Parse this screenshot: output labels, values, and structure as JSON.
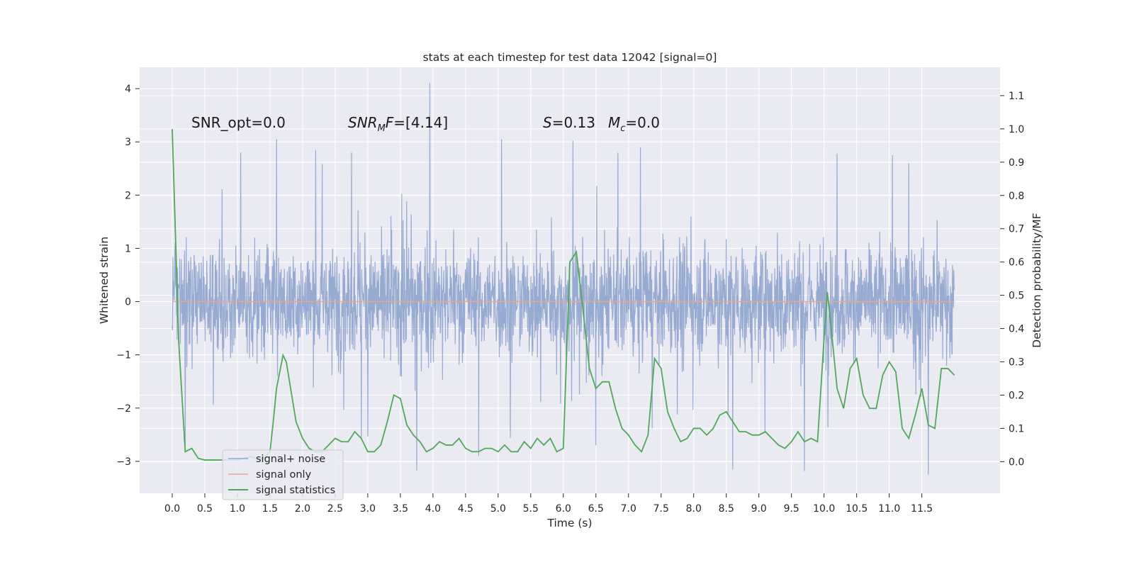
{
  "chart_data": {
    "type": "line",
    "title": "stats at each timestep for test data 12042 [signal=0]",
    "xlabel": "Time (s)",
    "ylabel": "Whitened strain",
    "y2label": "Detection probability/MF",
    "xlim": [
      -0.5,
      12.7
    ],
    "ylim": [
      -3.6,
      4.4
    ],
    "y2lim": [
      -0.095,
      1.185
    ],
    "x_ticks": [
      0.0,
      0.5,
      1.0,
      1.5,
      2.0,
      2.5,
      3.0,
      3.5,
      4.0,
      4.5,
      5.0,
      5.5,
      6.0,
      6.5,
      7.0,
      7.5,
      8.0,
      8.5,
      9.0,
      9.5,
      10.0,
      10.5,
      11.0,
      11.5
    ],
    "x_tick_labels": [
      "0.0",
      "0.5",
      "1.0",
      "1.5",
      "2.0",
      "2.5",
      "3.0",
      "3.5",
      "4.0",
      "4.5",
      "5.0",
      "5.5",
      "6.0",
      "6.5",
      "7.0",
      "7.5",
      "8.0",
      "8.5",
      "9.0",
      "9.5",
      "10.0",
      "10.5",
      "11.0",
      "11.5"
    ],
    "y_ticks": [
      -3,
      -2,
      -1,
      0,
      1,
      2,
      3,
      4
    ],
    "y_tick_labels": [
      "−3",
      "−2",
      "−1",
      "0",
      "1",
      "2",
      "3",
      "4"
    ],
    "y2_ticks": [
      0.0,
      0.1,
      0.2,
      0.3,
      0.4,
      0.5,
      0.6,
      0.7,
      0.8,
      0.9,
      1.0,
      1.1
    ],
    "y2_tick_labels": [
      "0.0",
      "0.1",
      "0.2",
      "0.3",
      "0.4",
      "0.5",
      "0.6",
      "0.7",
      "0.8",
      "0.9",
      "1.0",
      "1.1"
    ],
    "grid": true,
    "legend_position": "lower-left",
    "annotations": [
      {
        "id": "snr-opt",
        "parts": [
          {
            "t": "SNR_opt=0.0",
            "style": "normal"
          }
        ]
      },
      {
        "id": "snr-mf",
        "parts": [
          {
            "t": "SNR",
            "style": "italic"
          },
          {
            "t": "M",
            "style": "italic-sub"
          },
          {
            "t": "F",
            "style": "italic"
          },
          {
            "t": "=[4.14]",
            "style": "normal"
          }
        ]
      },
      {
        "id": "stat-s",
        "parts": [
          {
            "t": "S",
            "style": "italic"
          },
          {
            "t": "=0.13",
            "style": "normal"
          }
        ]
      },
      {
        "id": "stat-mc",
        "parts": [
          {
            "t": "M",
            "style": "italic"
          },
          {
            "t": "c",
            "style": "italic-sub"
          },
          {
            "t": "=0.0",
            "style": "normal"
          }
        ]
      }
    ],
    "series": [
      {
        "name": "signal+ noise",
        "color": "#92a6cf",
        "axis": "left",
        "kind": "noise",
        "x_range": [
          0.0,
          12.0
        ],
        "typical_band": [
          -1.0,
          1.0
        ],
        "max_peak": [
          3.95,
          4.1
        ],
        "min_peak": [
          3.75,
          -3.17
        ],
        "peaks_high": [
          [
            1.05,
            2.8
          ],
          [
            1.6,
            3.05
          ],
          [
            2.2,
            2.85
          ],
          [
            2.75,
            2.8
          ],
          [
            3.95,
            4.1
          ],
          [
            5.05,
            3.05
          ],
          [
            6.15,
            3.02
          ],
          [
            10.2,
            2.78
          ],
          [
            11.05,
            2.75
          ],
          [
            11.3,
            2.6
          ]
        ],
        "peaks_low": [
          [
            0.2,
            -2.7
          ],
          [
            3.75,
            -3.17
          ],
          [
            8.6,
            -3.15
          ],
          [
            9.7,
            -3.18
          ],
          [
            11.6,
            -3.25
          ],
          [
            2.9,
            -2.6
          ],
          [
            4.7,
            -2.9
          ],
          [
            6.5,
            -2.7
          ]
        ]
      },
      {
        "name": "signal only",
        "color": "#e8a788",
        "axis": "left",
        "x": [
          0.0,
          12.0
        ],
        "y": [
          0.0,
          0.0
        ]
      },
      {
        "name": "signal statistics",
        "color": "#50a85a",
        "axis": "right",
        "x": [
          0.0,
          0.1,
          0.2,
          0.3,
          0.4,
          0.5,
          0.6,
          0.7,
          0.8,
          0.9,
          1.0,
          1.1,
          1.2,
          1.3,
          1.4,
          1.5,
          1.55,
          1.6,
          1.65,
          1.7,
          1.75,
          1.8,
          1.9,
          2.0,
          2.1,
          2.2,
          2.3,
          2.4,
          2.5,
          2.6,
          2.7,
          2.8,
          2.9,
          3.0,
          3.1,
          3.2,
          3.3,
          3.4,
          3.5,
          3.6,
          3.7,
          3.8,
          3.9,
          4.0,
          4.1,
          4.2,
          4.3,
          4.4,
          4.5,
          4.6,
          4.7,
          4.8,
          4.9,
          5.0,
          5.1,
          5.2,
          5.3,
          5.4,
          5.5,
          5.6,
          5.7,
          5.8,
          5.9,
          6.0,
          6.1,
          6.2,
          6.3,
          6.4,
          6.5,
          6.6,
          6.7,
          6.8,
          6.9,
          7.0,
          7.1,
          7.2,
          7.3,
          7.4,
          7.5,
          7.6,
          7.7,
          7.8,
          7.9,
          8.0,
          8.1,
          8.2,
          8.3,
          8.4,
          8.5,
          8.6,
          8.7,
          8.8,
          8.9,
          9.0,
          9.1,
          9.2,
          9.3,
          9.4,
          9.5,
          9.6,
          9.7,
          9.8,
          9.9,
          10.0,
          10.05,
          10.1,
          10.2,
          10.3,
          10.4,
          10.5,
          10.6,
          10.7,
          10.8,
          10.9,
          11.0,
          11.1,
          11.2,
          11.3,
          11.4,
          11.5,
          11.6,
          11.7,
          11.8,
          11.9,
          12.0
        ],
        "y": [
          1.0,
          0.36,
          0.03,
          0.04,
          0.01,
          0.005,
          0.005,
          0.005,
          0.005,
          0.005,
          0.005,
          0.01,
          0.015,
          0.01,
          0.01,
          0.03,
          0.12,
          0.22,
          0.27,
          0.32,
          0.3,
          0.24,
          0.12,
          0.07,
          0.04,
          0.03,
          0.03,
          0.05,
          0.07,
          0.06,
          0.06,
          0.09,
          0.07,
          0.03,
          0.03,
          0.05,
          0.12,
          0.2,
          0.19,
          0.11,
          0.08,
          0.06,
          0.03,
          0.04,
          0.06,
          0.05,
          0.05,
          0.07,
          0.04,
          0.03,
          0.03,
          0.04,
          0.04,
          0.03,
          0.05,
          0.03,
          0.03,
          0.06,
          0.04,
          0.07,
          0.05,
          0.07,
          0.03,
          0.04,
          0.6,
          0.63,
          0.46,
          0.28,
          0.22,
          0.24,
          0.24,
          0.16,
          0.1,
          0.08,
          0.05,
          0.03,
          0.08,
          0.31,
          0.28,
          0.15,
          0.1,
          0.06,
          0.07,
          0.1,
          0.1,
          0.08,
          0.1,
          0.14,
          0.15,
          0.12,
          0.09,
          0.09,
          0.08,
          0.08,
          0.09,
          0.07,
          0.05,
          0.04,
          0.06,
          0.09,
          0.06,
          0.07,
          0.06,
          0.37,
          0.51,
          0.42,
          0.22,
          0.16,
          0.28,
          0.31,
          0.2,
          0.16,
          0.16,
          0.26,
          0.3,
          0.27,
          0.1,
          0.07,
          0.14,
          0.22,
          0.11,
          0.1,
          0.28,
          0.28,
          0.26
        ]
      }
    ]
  }
}
